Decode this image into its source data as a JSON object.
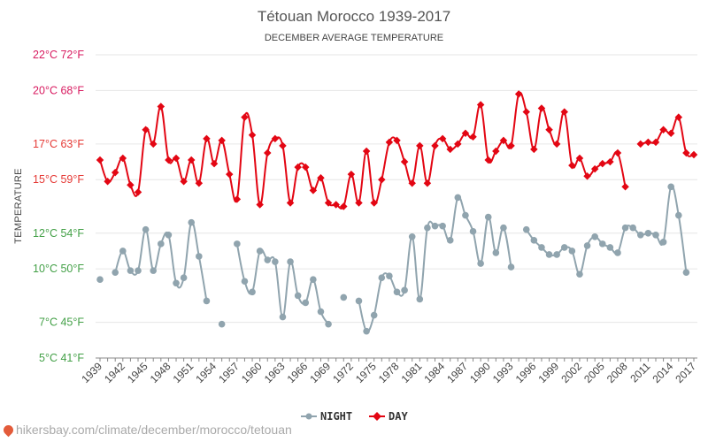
{
  "chart_data": {
    "type": "line",
    "title": "Tétouan Morocco 1939-2017",
    "subtitle": "DECEMBER AVERAGE TEMPERATURE",
    "ylabel": "TEMPERATURE",
    "ylim": [
      5,
      22
    ],
    "xlim": [
      1939,
      2017
    ],
    "grid": true,
    "legend_position": "bottom-center",
    "y_ticks": [
      {
        "value": 22,
        "label": "22°C 72°F",
        "color": "#d81b60"
      },
      {
        "value": 20,
        "label": "20°C 68°F",
        "color": "#d81b60"
      },
      {
        "value": 17,
        "label": "17°C 63°F",
        "color": "#e53935"
      },
      {
        "value": 15,
        "label": "15°C 59°F",
        "color": "#e53935"
      },
      {
        "value": 12,
        "label": "12°C 54°F",
        "color": "#43a047"
      },
      {
        "value": 10,
        "label": "10°C 50°F",
        "color": "#43a047"
      },
      {
        "value": 7,
        "label": "7°C 45°F",
        "color": "#43a047"
      },
      {
        "value": 5,
        "label": "5°C 41°F",
        "color": "#43a047"
      }
    ],
    "x_ticks": [
      "1939",
      "1942",
      "1945",
      "1948",
      "1951",
      "1954",
      "1957",
      "1960",
      "1963",
      "1966",
      "1969",
      "1972",
      "1975",
      "1978",
      "1981",
      "1984",
      "1987",
      "1990",
      "1993",
      "1996",
      "1999",
      "2002",
      "2005",
      "2008",
      "2011",
      "2014",
      "2017"
    ],
    "series": [
      {
        "name": "NIGHT",
        "color": "#90a4ae",
        "points": [
          [
            1939,
            9.4
          ],
          [
            1941,
            9.8
          ],
          [
            1942,
            11.0
          ],
          [
            1943,
            9.9
          ],
          [
            1944,
            9.9
          ],
          [
            1945,
            12.2
          ],
          [
            1946,
            9.9
          ],
          [
            1947,
            11.4
          ],
          [
            1948,
            11.9
          ],
          [
            1949,
            9.2
          ],
          [
            1950,
            9.5
          ],
          [
            1951,
            12.6
          ],
          [
            1952,
            10.7
          ],
          [
            1953,
            8.2
          ],
          [
            1955,
            6.9
          ],
          [
            1957,
            11.4
          ],
          [
            1958,
            9.3
          ],
          [
            1959,
            8.7
          ],
          [
            1960,
            11.0
          ],
          [
            1961,
            10.5
          ],
          [
            1962,
            10.4
          ],
          [
            1963,
            7.3
          ],
          [
            1964,
            10.4
          ],
          [
            1965,
            8.5
          ],
          [
            1966,
            8.1
          ],
          [
            1967,
            9.4
          ],
          [
            1968,
            7.6
          ],
          [
            1969,
            6.9
          ],
          [
            1971,
            8.4
          ],
          [
            1973,
            8.2
          ],
          [
            1974,
            6.5
          ],
          [
            1975,
            7.4
          ],
          [
            1976,
            9.5
          ],
          [
            1977,
            9.6
          ],
          [
            1978,
            8.7
          ],
          [
            1979,
            8.8
          ],
          [
            1980,
            11.8
          ],
          [
            1981,
            8.3
          ],
          [
            1982,
            12.3
          ],
          [
            1983,
            12.4
          ],
          [
            1984,
            12.4
          ],
          [
            1985,
            11.6
          ],
          [
            1986,
            14.0
          ],
          [
            1987,
            13.0
          ],
          [
            1988,
            12.1
          ],
          [
            1989,
            10.3
          ],
          [
            1990,
            12.9
          ],
          [
            1991,
            10.9
          ],
          [
            1992,
            12.3
          ],
          [
            1993,
            10.1
          ],
          [
            1995,
            12.2
          ],
          [
            1996,
            11.6
          ],
          [
            1997,
            11.2
          ],
          [
            1998,
            10.8
          ],
          [
            1999,
            10.8
          ],
          [
            2000,
            11.2
          ],
          [
            2001,
            11.0
          ],
          [
            2002,
            9.7
          ],
          [
            2003,
            11.3
          ],
          [
            2004,
            11.8
          ],
          [
            2005,
            11.4
          ],
          [
            2006,
            11.2
          ],
          [
            2007,
            10.9
          ],
          [
            2008,
            12.3
          ],
          [
            2009,
            12.3
          ],
          [
            2010,
            11.9
          ],
          [
            2011,
            12.0
          ],
          [
            2012,
            11.9
          ],
          [
            2013,
            11.5
          ],
          [
            2014,
            14.6
          ],
          [
            2015,
            13.0
          ],
          [
            2016,
            9.8
          ]
        ]
      },
      {
        "name": "DAY",
        "color": "#e30613",
        "points": [
          [
            1939,
            16.1
          ],
          [
            1940,
            14.9
          ],
          [
            1941,
            15.4
          ],
          [
            1942,
            16.2
          ],
          [
            1943,
            14.7
          ],
          [
            1944,
            14.3
          ],
          [
            1945,
            17.8
          ],
          [
            1946,
            17.0
          ],
          [
            1947,
            19.1
          ],
          [
            1948,
            16.1
          ],
          [
            1949,
            16.2
          ],
          [
            1950,
            14.9
          ],
          [
            1951,
            16.1
          ],
          [
            1952,
            14.8
          ],
          [
            1953,
            17.3
          ],
          [
            1954,
            15.9
          ],
          [
            1955,
            17.2
          ],
          [
            1956,
            15.3
          ],
          [
            1957,
            13.9
          ],
          [
            1958,
            18.5
          ],
          [
            1959,
            17.5
          ],
          [
            1960,
            13.6
          ],
          [
            1961,
            16.5
          ],
          [
            1962,
            17.3
          ],
          [
            1963,
            16.9
          ],
          [
            1964,
            13.7
          ],
          [
            1965,
            15.7
          ],
          [
            1966,
            15.7
          ],
          [
            1967,
            14.4
          ],
          [
            1968,
            15.1
          ],
          [
            1969,
            13.7
          ],
          [
            1970,
            13.6
          ],
          [
            1971,
            13.5
          ],
          [
            1972,
            15.3
          ],
          [
            1973,
            13.7
          ],
          [
            1974,
            16.6
          ],
          [
            1975,
            13.7
          ],
          [
            1976,
            15.0
          ],
          [
            1977,
            17.1
          ],
          [
            1978,
            17.2
          ],
          [
            1979,
            16.0
          ],
          [
            1980,
            14.8
          ],
          [
            1981,
            16.9
          ],
          [
            1982,
            14.8
          ],
          [
            1983,
            16.9
          ],
          [
            1984,
            17.3
          ],
          [
            1985,
            16.7
          ],
          [
            1986,
            17.0
          ],
          [
            1987,
            17.6
          ],
          [
            1988,
            17.4
          ],
          [
            1989,
            19.2
          ],
          [
            1990,
            16.1
          ],
          [
            1991,
            16.6
          ],
          [
            1992,
            17.2
          ],
          [
            1993,
            16.9
          ],
          [
            1994,
            19.8
          ],
          [
            1995,
            18.8
          ],
          [
            1996,
            16.7
          ],
          [
            1997,
            19.0
          ],
          [
            1998,
            17.8
          ],
          [
            1999,
            17.0
          ],
          [
            2000,
            18.8
          ],
          [
            2001,
            15.8
          ],
          [
            2002,
            16.2
          ],
          [
            2003,
            15.2
          ],
          [
            2004,
            15.6
          ],
          [
            2005,
            15.9
          ],
          [
            2006,
            16.0
          ],
          [
            2007,
            16.5
          ],
          [
            2008,
            14.6
          ],
          [
            2010,
            17.0
          ],
          [
            2011,
            17.1
          ],
          [
            2012,
            17.1
          ],
          [
            2013,
            17.8
          ],
          [
            2014,
            17.6
          ],
          [
            2015,
            18.5
          ],
          [
            2016,
            16.5
          ],
          [
            2017,
            16.4
          ]
        ]
      }
    ]
  },
  "legend": {
    "night_label": "NIGHT",
    "day_label": "DAY"
  },
  "footer": {
    "source_text": "hikersbay.com/climate/december/morocco/tetouan"
  }
}
